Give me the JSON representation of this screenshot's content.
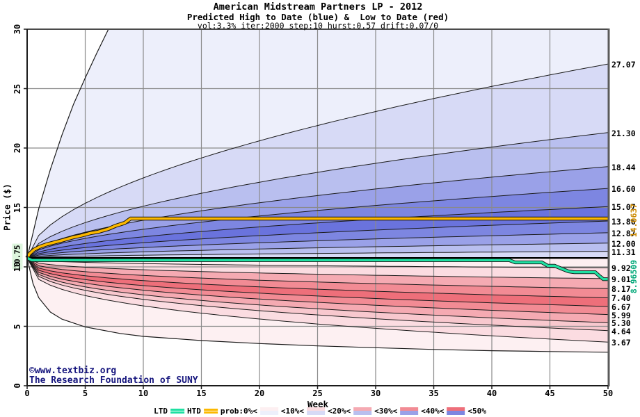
{
  "title": {
    "line1": "American Midstream Partners LP - 2012",
    "line2": "Predicted High to Date (blue) &  Low to Date (red)",
    "line3": "vol:3.3% iter:2000 step:10 hurst:0.57 drift:0.07/0"
  },
  "watermark": {
    "line1": "©www.textbiz.org",
    "line2": "The Research Foundation of SUNY",
    "color": "#16167e"
  },
  "axes": {
    "x": {
      "label": "Week",
      "ticks": [
        0,
        5,
        10,
        15,
        20,
        25,
        30,
        35,
        40,
        45,
        50
      ],
      "range": [
        0,
        50
      ]
    },
    "y": {
      "label": "Price ($)",
      "ticks": [
        0,
        5,
        10,
        15,
        20,
        25,
        30
      ],
      "range": [
        0,
        30
      ],
      "start_label": "10.75",
      "start_label_bg": "#ddf5dd"
    }
  },
  "right_labels": {
    "htd_end": "14.0637",
    "htd_color": "#cc8a00",
    "ltd_end": "8.96509",
    "ltd_color": "#00a878"
  },
  "legend": {
    "ltd_label": "LTD",
    "htd_label": "HTD",
    "prob_label": "prob:0%<",
    "band_labels": [
      "<10%<",
      "<20%<",
      "<30%<",
      "<40%<",
      "<50%"
    ],
    "ltd_color": "#1fe0a2",
    "htd_color": "#fcb800",
    "band_swatches": [
      [
        "#fdeff1",
        "#edeffb"
      ],
      [
        "#fbdce1",
        "#d7daf6"
      ],
      [
        "#f5aab2",
        "#b9bfef"
      ],
      [
        "#f28b94",
        "#9aa1e8"
      ],
      [
        "#ee6f7a",
        "#7d86e1"
      ]
    ]
  },
  "chart_data": {
    "type": "area",
    "description": "Monte Carlo fan projection: predicted high-to-date (blue bands above start price) and low-to-date (red bands below start price) over 50 weeks",
    "start_price": 10.75,
    "x_range": [
      0,
      50
    ],
    "y_range": [
      0,
      30
    ],
    "high_band_boundaries": {
      "end_values": [
        27.07,
        21.3,
        18.44,
        16.6,
        15.07,
        13.86,
        12.87,
        12.0,
        11.31
      ],
      "labels": [
        "27.07",
        "21.30",
        "18.44",
        "16.60",
        "15.07",
        "13.86",
        "12.87",
        "12.00",
        "11.31"
      ],
      "curve_exponent": 0.55
    },
    "low_band_boundaries": {
      "end_values": [
        9.92,
        9.01,
        8.17,
        7.4,
        6.67,
        5.99,
        5.3,
        4.64,
        3.67
      ],
      "labels": [
        "9.92",
        "9.01",
        "8.17",
        "7.40",
        "6.67",
        "5.99",
        "5.30",
        "4.64",
        "3.67"
      ],
      "curve_exponent": 0.35
    },
    "high_envelope": [
      [
        0,
        10.75
      ],
      [
        1,
        14.9
      ],
      [
        2,
        18.2
      ],
      [
        3,
        21.1
      ],
      [
        4,
        23.7
      ],
      [
        5,
        25.9
      ],
      [
        6,
        28.0
      ],
      [
        7,
        30
      ]
    ],
    "low_envelope": [
      [
        0,
        10.75
      ],
      [
        0.5,
        8.6
      ],
      [
        1,
        7.4
      ],
      [
        2,
        6.2
      ],
      [
        3,
        5.6
      ],
      [
        5,
        4.95
      ],
      [
        8,
        4.4
      ],
      [
        10,
        4.15
      ],
      [
        15,
        3.8
      ],
      [
        20,
        3.55
      ],
      [
        25,
        3.35
      ],
      [
        30,
        3.2
      ],
      [
        35,
        3.05
      ],
      [
        40,
        2.95
      ],
      [
        45,
        2.88
      ],
      [
        50,
        2.82
      ]
    ],
    "htd_line": {
      "name": "HTD",
      "end_value": 14.0637,
      "color": "#fcb800",
      "points": [
        [
          0,
          10.75
        ],
        [
          0.2,
          11.1
        ],
        [
          0.6,
          11.45
        ],
        [
          1.1,
          11.7
        ],
        [
          1.7,
          11.9
        ],
        [
          2.5,
          12.1
        ],
        [
          3.1,
          12.25
        ],
        [
          4.0,
          12.5
        ],
        [
          4.6,
          12.62
        ],
        [
          5.5,
          12.85
        ],
        [
          6.1,
          12.95
        ],
        [
          7.0,
          13.2
        ],
        [
          7.6,
          13.45
        ],
        [
          8.4,
          13.7
        ],
        [
          8.9,
          14.0637
        ],
        [
          50,
          14.0637
        ]
      ]
    },
    "ltd_line": {
      "name": "LTD",
      "end_value": 8.96509,
      "color": "#1fe0a2",
      "points": [
        [
          0,
          10.75
        ],
        [
          0.4,
          10.57
        ],
        [
          41.5,
          10.57
        ],
        [
          42.0,
          10.38
        ],
        [
          44.3,
          10.38
        ],
        [
          44.8,
          10.1
        ],
        [
          45.4,
          10.1
        ],
        [
          46.0,
          9.85
        ],
        [
          46.6,
          9.62
        ],
        [
          47.1,
          9.55
        ],
        [
          48.9,
          9.55
        ],
        [
          49.3,
          9.2
        ],
        [
          49.6,
          8.965
        ],
        [
          50,
          8.965
        ]
      ]
    },
    "high_band_colors": [
      "#edeffb",
      "#d7daf6",
      "#b9bfef",
      "#9aa1e8",
      "#7d86e1",
      "#6a73dd",
      "#7d86e1",
      "#9aa1e8",
      "#b9bfef",
      "#d7daf6"
    ],
    "low_band_colors": [
      "#fdeff1",
      "#fbdce1",
      "#f5aab2",
      "#f28b94",
      "#ee6f7a",
      "#f28b94",
      "#f5aab2",
      "#f8c8ce",
      "#fbdce1",
      "#fdf0f2"
    ],
    "grid_color": "#8a8a8a",
    "line_color": "#1a1a1a"
  }
}
